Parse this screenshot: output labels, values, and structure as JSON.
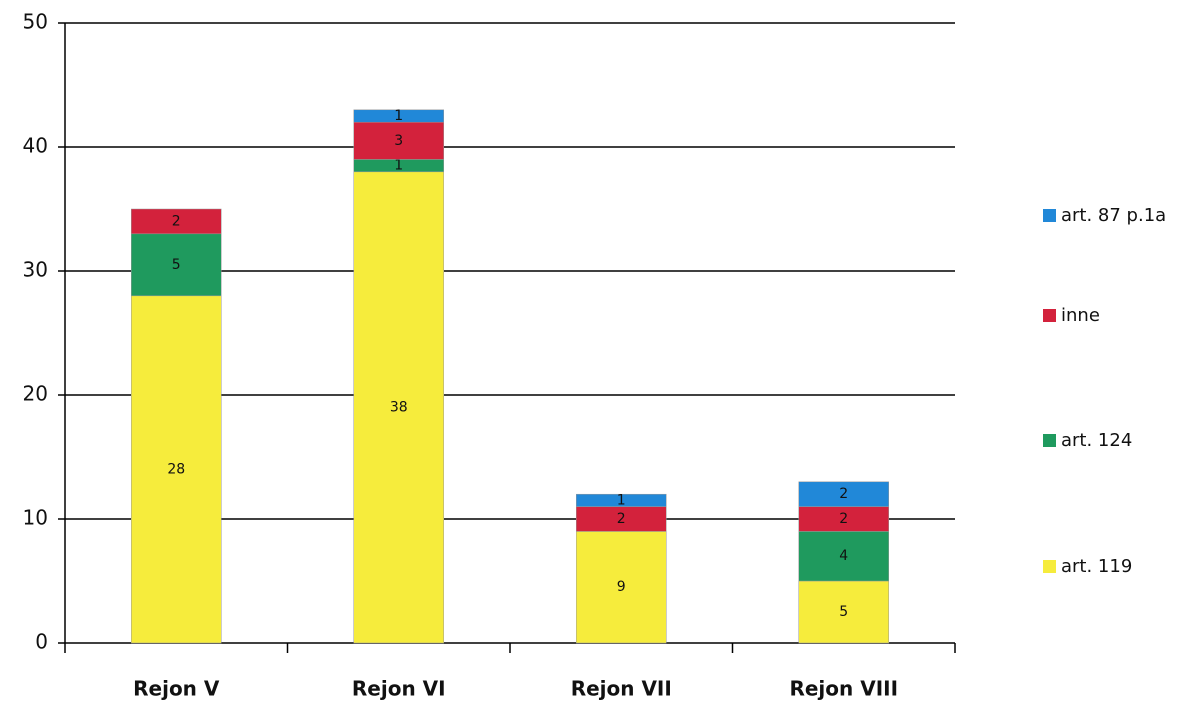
{
  "chart_data": {
    "type": "stacked_bar",
    "categories": [
      "Rejon V",
      "Rejon VI",
      "Rejon VII",
      "Rejon VIII"
    ],
    "series": [
      {
        "name": "art. 119",
        "color": "#f6ec3c",
        "values": [
          28,
          38,
          9,
          5
        ]
      },
      {
        "name": "art. 124",
        "color": "#1f9a5e",
        "values": [
          5,
          1,
          null,
          4
        ]
      },
      {
        "name": "inne",
        "color": "#d3223c",
        "values": [
          2,
          3,
          2,
          2
        ]
      },
      {
        "name": "art. 87 p.1a",
        "color": "#2188d8",
        "values": [
          null,
          1,
          1,
          2
        ]
      }
    ],
    "ylim": [
      0,
      50
    ],
    "yticks": [
      0,
      10,
      20,
      30,
      40,
      50
    ],
    "grid": true,
    "legend": "right"
  }
}
